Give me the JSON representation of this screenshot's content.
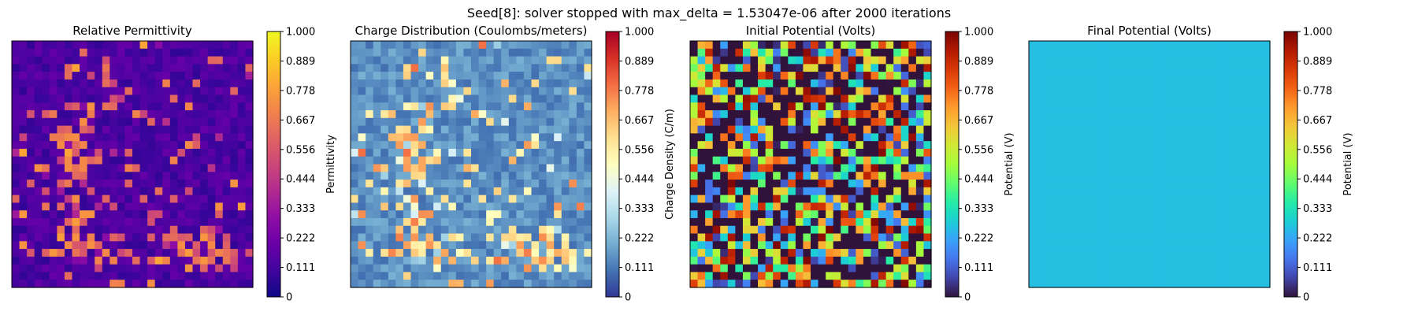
{
  "suptitle": "Seed[8]: solver stopped with max_delta = 1.53047e-06 after 2000 iterations",
  "chart_data": [
    {
      "type": "heatmap",
      "title": "Relative Permittivity",
      "colorbar_label": "Permittivity",
      "colormap": "plasma",
      "grid_size": [
        32,
        32
      ],
      "value_range": [
        0,
        1
      ],
      "colorbar_ticks": [
        "0",
        "0.111",
        "0.222",
        "0.333",
        "0.444",
        "0.556",
        "0.667",
        "0.778",
        "0.889",
        "1.000"
      ],
      "background_value": 0.07,
      "seed": 11,
      "fill": "pattern",
      "axes_ticks": false
    },
    {
      "type": "heatmap",
      "title": "Charge Distribution (Coulombs/meters)",
      "colorbar_label": "Charge Density (C/m)",
      "colormap": "RdYlBu_r",
      "grid_size": [
        32,
        32
      ],
      "value_range": [
        0,
        1
      ],
      "colorbar_ticks": [
        "0",
        "0.111",
        "0.222",
        "0.333",
        "0.444",
        "0.556",
        "0.667",
        "0.778",
        "0.889",
        "1.000"
      ],
      "background_value": 0.09,
      "seed": 11,
      "fill": "pattern",
      "axes_ticks": false
    },
    {
      "type": "heatmap",
      "title": "Initial Potential (Volts)",
      "colorbar_label": "Potential (V)",
      "colormap": "turbo",
      "grid_size": [
        32,
        32
      ],
      "value_range": [
        0,
        1
      ],
      "colorbar_ticks": [
        "0",
        "0.111",
        "0.222",
        "0.333",
        "0.444",
        "0.556",
        "0.667",
        "0.778",
        "0.889",
        "1.000"
      ],
      "background_value": 0.0,
      "seed": 29,
      "fill": "random",
      "axes_ticks": false
    },
    {
      "type": "heatmap",
      "title": "Final Potential (Volts)",
      "colorbar_label": "Potential (V)",
      "colormap": "turbo",
      "grid_size": [
        32,
        32
      ],
      "value_range": [
        0,
        1
      ],
      "colorbar_ticks": [
        "0",
        "0.111",
        "0.222",
        "0.333",
        "0.444",
        "0.556",
        "0.667",
        "0.778",
        "0.889",
        "1.000"
      ],
      "uniform_value": 0.26,
      "fill": "uniform",
      "axes_ticks": false
    }
  ]
}
